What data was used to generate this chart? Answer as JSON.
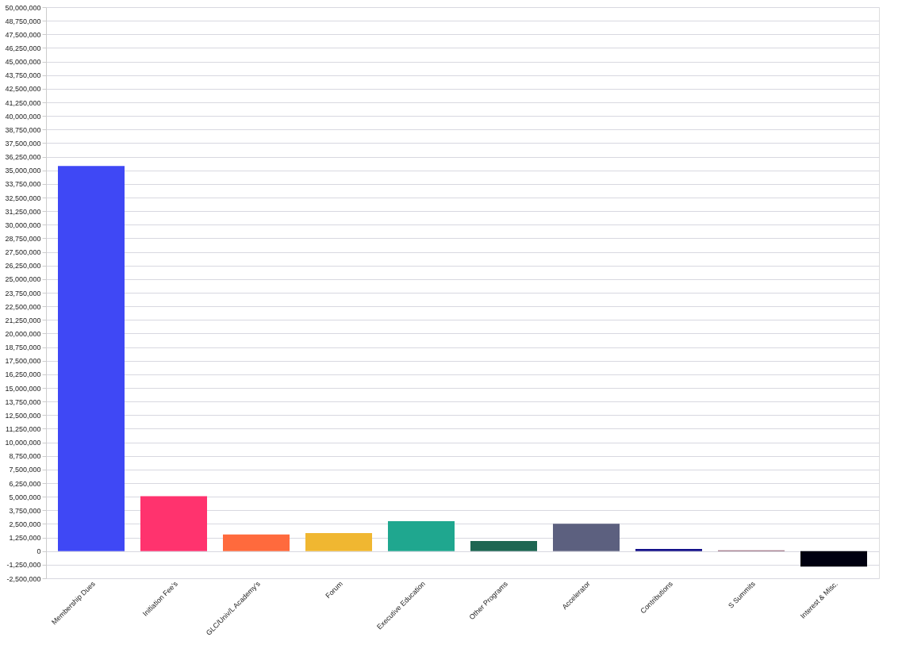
{
  "chart_data": {
    "type": "bar",
    "categories": [
      "Membership Dues",
      "Initiation Fee's",
      "GLC/Univ/L Academy's",
      "Forum",
      "Executive Education",
      "Other Programs",
      "Accelerator",
      "Contributions",
      "S Summits",
      "Interest & Misc."
    ],
    "values": [
      35400000,
      5050000,
      1520000,
      1650000,
      2750000,
      930000,
      2520000,
      200000,
      70000,
      -1430000
    ],
    "colors": [
      "#3f48f5",
      "#ff336e",
      "#ff6a3d",
      "#f0b731",
      "#1fa78f",
      "#1e6652",
      "#5c607f",
      "#14118a",
      "#8c5a6e",
      "#000010"
    ],
    "ylim": [
      -2500000,
      50000000
    ],
    "yticks": [
      {
        "value": -2500000,
        "label": "-2,500,000"
      },
      {
        "value": -1250000,
        "label": "-1,250,000"
      },
      0,
      {
        "value": 1250000,
        "label": "1,250,000"
      },
      {
        "value": 2500000,
        "label": "2,500,000"
      },
      {
        "value": 3750000,
        "label": "3,750,000"
      },
      {
        "value": 5000000,
        "label": "5,000,000"
      },
      {
        "value": 6250000,
        "label": "6,250,000"
      },
      {
        "value": 7500000,
        "label": "7,500,000"
      },
      {
        "value": 8750000,
        "label": "8,750,000"
      },
      {
        "value": 10000000,
        "label": "10,000,000"
      },
      {
        "value": 11250000,
        "label": "11,250,000"
      },
      {
        "value": 12500000,
        "label": "12,500,000"
      },
      {
        "value": 13750000,
        "label": "13,750,000"
      },
      {
        "value": 15000000,
        "label": "15,000,000"
      },
      {
        "value": 16250000,
        "label": "16,250,000"
      },
      {
        "value": 17500000,
        "label": "17,500,000"
      },
      {
        "value": 18750000,
        "label": "18,750,000"
      },
      {
        "value": 20000000,
        "label": "20,000,000"
      },
      {
        "value": 21250000,
        "label": "21,250,000"
      },
      {
        "value": 22500000,
        "label": "22,500,000"
      },
      {
        "value": 23750000,
        "label": "23,750,000"
      },
      {
        "value": 25000000,
        "label": "25,000,000"
      },
      {
        "value": 26250000,
        "label": "26,250,000"
      },
      {
        "value": 27500000,
        "label": "27,500,000"
      },
      {
        "value": 28750000,
        "label": "28,750,000"
      },
      {
        "value": 30000000,
        "label": "30,000,000"
      },
      {
        "value": 31250000,
        "label": "31,250,000"
      },
      {
        "value": 32500000,
        "label": "32,500,000"
      },
      {
        "value": 33750000,
        "label": "33,750,000"
      },
      {
        "value": 35000000,
        "label": "35,000,000"
      },
      {
        "value": 36250000,
        "label": "36,250,000"
      },
      {
        "value": 37500000,
        "label": "37,500,000"
      },
      {
        "value": 38750000,
        "label": "38,750,000"
      },
      {
        "value": 40000000,
        "label": "40,000,000"
      },
      {
        "value": 41250000,
        "label": "41,250,000"
      },
      {
        "value": 42500000,
        "label": "42,500,000"
      },
      {
        "value": 43750000,
        "label": "43,750,000"
      },
      {
        "value": 45000000,
        "label": "45,000,000"
      },
      {
        "value": 46250000,
        "label": "46,250,000"
      },
      {
        "value": 47500000,
        "label": "47,500,000"
      },
      {
        "value": 48750000,
        "label": "48,750,000"
      },
      {
        "value": 50000000,
        "label": "50,000,000"
      }
    ],
    "grid": "y"
  }
}
